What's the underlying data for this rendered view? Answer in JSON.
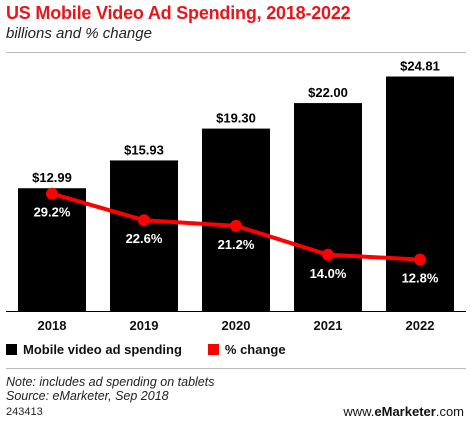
{
  "title": "US Mobile Video Ad Spending, 2018-2022",
  "subtitle": "billions and % change",
  "legend": {
    "spending_label": "Mobile video ad spending",
    "change_label": "% change"
  },
  "colors": {
    "title": "#e8161c",
    "bar": "#000000",
    "line": "#ff0000",
    "bar_label_text": "#ffffff",
    "value_label_text": "#000000"
  },
  "chart_data": {
    "type": "bar",
    "categories": [
      "2018",
      "2019",
      "2020",
      "2021",
      "2022"
    ],
    "series": [
      {
        "name": "Mobile video ad spending",
        "type": "bar",
        "values": [
          12.99,
          15.93,
          19.3,
          22.0,
          24.81
        ],
        "labels": [
          "$12.99",
          "$15.93",
          "$19.30",
          "$22.00",
          "$24.81"
        ]
      },
      {
        "name": "% change",
        "type": "line",
        "values": [
          29.2,
          22.6,
          21.2,
          14.0,
          12.8
        ],
        "labels": [
          "29.2%",
          "22.6%",
          "21.2%",
          "14.0%",
          "12.8%"
        ]
      }
    ],
    "ylim": [
      0,
      25.5
    ],
    "line_ylim": [
      0,
      60
    ],
    "grid": false,
    "legend_position": "bottom"
  },
  "note": "Note: includes ad spending on tablets",
  "source": "Source: eMarketer, Sep 2018",
  "footer_id": "243413",
  "brand": {
    "prefix": "www.",
    "e": "e",
    "name": "Marketer",
    "suffix": ".com"
  }
}
